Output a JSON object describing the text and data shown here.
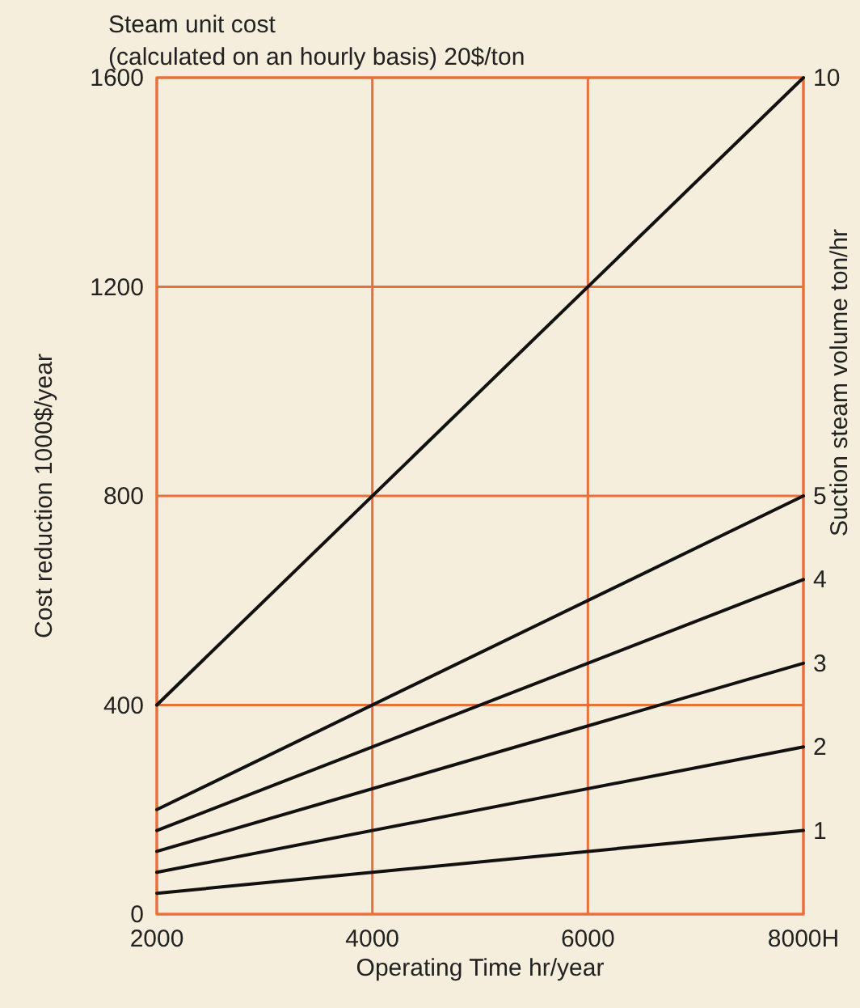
{
  "chart_data": {
    "type": "line",
    "title": "Steam unit cost",
    "subtitle": "(calculated on an hourly basis) 20$/ton",
    "xlabel": "Operating Time hr/year",
    "ylabel": "Cost reduction 1000$/year",
    "y2label": "Suction steam volume ton/hr",
    "x": [
      2000,
      8000
    ],
    "series": [
      {
        "name": "10",
        "color": "#111111",
        "values": [
          400,
          1600
        ]
      },
      {
        "name": "5",
        "color": "#111111",
        "values": [
          200,
          800
        ]
      },
      {
        "name": "4",
        "color": "#111111",
        "values": [
          160,
          640
        ]
      },
      {
        "name": "3",
        "color": "#111111",
        "values": [
          120,
          480
        ]
      },
      {
        "name": "2",
        "color": "#111111",
        "values": [
          80,
          320
        ]
      },
      {
        "name": "1",
        "color": "#111111",
        "values": [
          40,
          160
        ]
      }
    ],
    "xlim": [
      2000,
      8000
    ],
    "xticks": [
      2000,
      4000,
      6000,
      {
        "value": 8000,
        "label": "8000H"
      }
    ],
    "ylim": [
      0,
      1600
    ],
    "yticks": [
      0,
      400,
      800,
      1200,
      1600
    ],
    "grid": true,
    "marker": "none",
    "line_style": "solid"
  }
}
